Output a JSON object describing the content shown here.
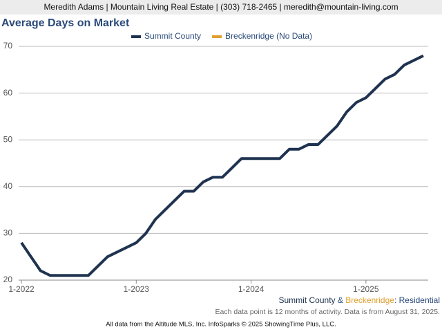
{
  "header": "Meredith Adams | Mountain Living Real Estate | (303) 718-2465 | meredith@mountain-living.com",
  "chart_data": {
    "type": "line",
    "title": "Average Days on Market",
    "categories": [
      "1-2022",
      null,
      null,
      null,
      null,
      null,
      null,
      null,
      null,
      null,
      null,
      null,
      "1-2023",
      null,
      null,
      null,
      null,
      null,
      null,
      null,
      null,
      null,
      null,
      null,
      "1-2024",
      null,
      null,
      null,
      null,
      null,
      null,
      null,
      null,
      null,
      null,
      null,
      "1-2025",
      null,
      null,
      null,
      null,
      null,
      null
    ],
    "series": [
      {
        "name": "Summit County",
        "color": "#1f3350",
        "values": [
          28,
          25,
          22,
          21,
          21,
          21,
          21,
          21,
          23,
          25,
          26,
          27,
          28,
          30,
          33,
          35,
          37,
          39,
          39,
          41,
          42,
          42,
          44,
          46,
          46,
          46,
          46,
          46,
          48,
          48,
          49,
          49,
          51,
          53,
          56,
          58,
          59,
          61,
          63,
          64,
          66,
          67,
          68
        ]
      },
      {
        "name": "Breckenridge (No Data)",
        "color": "#e0a030",
        "values": [
          null,
          null,
          null,
          null,
          null,
          null,
          null,
          null,
          null,
          null,
          null,
          null,
          null,
          null,
          null,
          null,
          null,
          null,
          null,
          null,
          null,
          null,
          null,
          null,
          null,
          null,
          null,
          null,
          null,
          null,
          null,
          null,
          null,
          null,
          null,
          null,
          null,
          null,
          null,
          null,
          null,
          null,
          null
        ]
      }
    ],
    "ylim": [
      20,
      70
    ],
    "yticks": [
      20,
      30,
      40,
      50,
      60,
      70
    ],
    "grid": true,
    "legend": "top",
    "footer": {
      "area1": "Summit County",
      "and": "&",
      "area2": "Breckenridge",
      "kind": ": Residential"
    },
    "note": "Each data point is 12 months of activity. Data is from August 31, 2025.",
    "source": "All data from the Altitude MLS, Inc. InfoSparks © 2025 ShowingTime Plus, LLC."
  }
}
